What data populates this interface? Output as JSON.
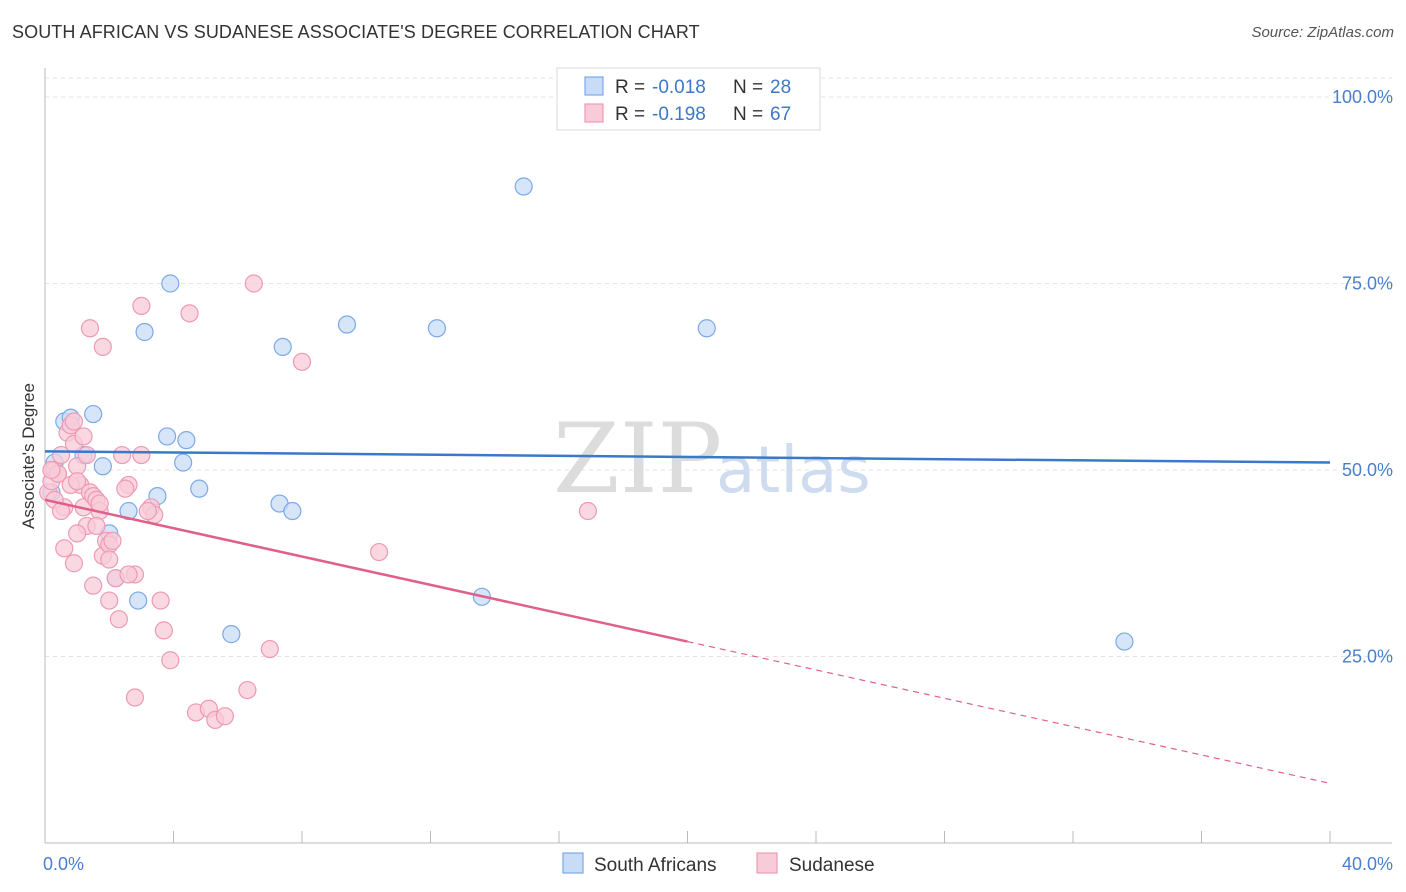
{
  "title": "SOUTH AFRICAN VS SUDANESE ASSOCIATE'S DEGREE CORRELATION CHART",
  "source": "Source: ZipAtlas.com",
  "watermark": {
    "zip": "ZIP",
    "atlas": "atlas"
  },
  "chart_data": {
    "type": "scatter",
    "ylabel": "Associate's Degree",
    "xlim": [
      0,
      40
    ],
    "ylim": [
      0,
      105
    ],
    "x_tick_labels": [
      {
        "value": 0,
        "label": "0.0%"
      },
      {
        "value": 40,
        "label": "40.0%"
      }
    ],
    "y_tick_labels": [
      {
        "value": 25,
        "label": "25.0%"
      },
      {
        "value": 50,
        "label": "50.0%"
      },
      {
        "value": 75,
        "label": "75.0%"
      },
      {
        "value": 100,
        "label": "100.0%"
      }
    ],
    "legend": {
      "rows": [
        {
          "r_label": "R =",
          "r_value": "-0.018",
          "n_label": "N =",
          "n_value": "28"
        },
        {
          "r_label": "R =",
          "r_value": "-0.198",
          "n_label": "N =",
          "n_value": "67"
        }
      ]
    },
    "series": [
      {
        "name": "South Africans",
        "color": "#7aaae8",
        "fill": "#c9dcf5",
        "line_color": "#3a78c9",
        "trend": {
          "x0": 0,
          "y0": 52.5,
          "x1": 40,
          "y1": 51.0,
          "dash_from": null
        },
        "points": [
          [
            0.6,
            56.5
          ],
          [
            0.8,
            57
          ],
          [
            1.5,
            57.5
          ],
          [
            0.3,
            51
          ],
          [
            1.2,
            52
          ],
          [
            1.8,
            50.5
          ],
          [
            3.1,
            68.5
          ],
          [
            3.9,
            75
          ],
          [
            3.8,
            54.5
          ],
          [
            4.4,
            54
          ],
          [
            4.3,
            51
          ],
          [
            4.8,
            47.5
          ],
          [
            3.5,
            46.5
          ],
          [
            2.6,
            44.5
          ],
          [
            2.0,
            41.5
          ],
          [
            2.2,
            35.5
          ],
          [
            2.9,
            32.5
          ],
          [
            5.8,
            28
          ],
          [
            7.4,
            66.5
          ],
          [
            7.3,
            45.5
          ],
          [
            7.7,
            44.5
          ],
          [
            9.4,
            69.5
          ],
          [
            12.2,
            69
          ],
          [
            14.9,
            88
          ],
          [
            20.6,
            69
          ],
          [
            13.6,
            33
          ],
          [
            33.6,
            27
          ],
          [
            0.2,
            47
          ]
        ]
      },
      {
        "name": "Sudanese",
        "color": "#ee9ab4",
        "fill": "#f8cbd8",
        "line_color": "#e0608a",
        "trend": {
          "x0": 0,
          "y0": 46,
          "x1": 40,
          "y1": 8,
          "dash_from": 20
        },
        "points": [
          [
            0.1,
            47
          ],
          [
            0.2,
            48.5
          ],
          [
            0.3,
            50
          ],
          [
            0.4,
            49.5
          ],
          [
            0.5,
            52
          ],
          [
            0.6,
            45
          ],
          [
            0.7,
            55
          ],
          [
            0.8,
            56
          ],
          [
            0.9,
            53.5
          ],
          [
            1.0,
            50.5
          ],
          [
            1.1,
            48
          ],
          [
            1.2,
            45
          ],
          [
            1.3,
            42.5
          ],
          [
            1.4,
            47
          ],
          [
            1.5,
            46.5
          ],
          [
            1.6,
            46
          ],
          [
            1.7,
            44.5
          ],
          [
            1.8,
            38.5
          ],
          [
            1.9,
            40.5
          ],
          [
            2.0,
            40
          ],
          [
            2.1,
            40.5
          ],
          [
            2.2,
            35.5
          ],
          [
            0.6,
            39.5
          ],
          [
            0.9,
            37.5
          ],
          [
            1.5,
            34.5
          ],
          [
            2.0,
            32.5
          ],
          [
            2.3,
            30
          ],
          [
            1.4,
            69
          ],
          [
            1.8,
            66.5
          ],
          [
            3.0,
            72
          ],
          [
            4.5,
            71
          ],
          [
            6.5,
            75
          ],
          [
            8.0,
            64.5
          ],
          [
            2.4,
            52
          ],
          [
            3.0,
            52
          ],
          [
            2.6,
            48
          ],
          [
            3.3,
            45
          ],
          [
            3.4,
            44
          ],
          [
            3.6,
            32.5
          ],
          [
            3.7,
            28.5
          ],
          [
            3.9,
            24.5
          ],
          [
            2.8,
            36
          ],
          [
            2.6,
            36
          ],
          [
            4.7,
            17.5
          ],
          [
            5.1,
            18
          ],
          [
            5.3,
            16.5
          ],
          [
            5.6,
            17
          ],
          [
            6.3,
            20.5
          ],
          [
            7.0,
            26
          ],
          [
            2.8,
            19.5
          ],
          [
            10.4,
            39
          ],
          [
            16.9,
            44.5
          ],
          [
            1.0,
            41.5
          ],
          [
            1.6,
            42.5
          ],
          [
            0.4,
            49.5
          ],
          [
            0.3,
            46
          ],
          [
            2.5,
            47.5
          ],
          [
            1.2,
            54.5
          ],
          [
            0.8,
            48
          ],
          [
            0.5,
            44.5
          ],
          [
            2.0,
            38
          ],
          [
            1.7,
            45.5
          ],
          [
            0.2,
            50
          ],
          [
            1.0,
            48.5
          ],
          [
            0.9,
            56.5
          ],
          [
            3.2,
            44.5
          ],
          [
            1.3,
            52
          ]
        ]
      }
    ],
    "bottom_legend": [
      "South Africans",
      "Sudanese"
    ]
  }
}
